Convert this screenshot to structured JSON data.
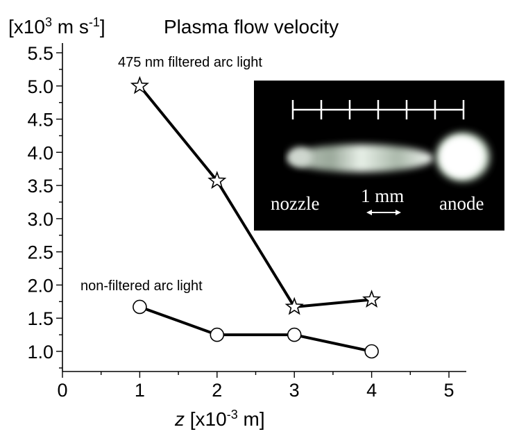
{
  "chart_data": {
    "type": "line",
    "title": "Plasma flow velocity",
    "ylabel_unit": "[x10³ m s⁻¹]",
    "xlabel": "z [x10⁻³ m]",
    "xlim": [
      0,
      5
    ],
    "ylim": [
      0.75,
      5.5
    ],
    "x_ticks": [
      "0",
      "1",
      "2",
      "3",
      "4",
      "5"
    ],
    "y_ticks": [
      "1.0",
      "1.5",
      "2.0",
      "2.5",
      "3.0",
      "3.5",
      "4.0",
      "4.5",
      "5.0",
      "5.5"
    ],
    "series": [
      {
        "name": "475 nm filtered arc light",
        "marker": "star",
        "x": [
          1,
          2,
          3,
          4
        ],
        "y": [
          5.0,
          3.57,
          1.67,
          1.78
        ]
      },
      {
        "name": "non-filtered arc light",
        "marker": "circle",
        "x": [
          1,
          2,
          3,
          4
        ],
        "y": [
          1.67,
          1.25,
          1.25,
          1.0
        ]
      }
    ]
  },
  "inset": {
    "label_left": "nozzle",
    "label_right": "anode",
    "scale_label": "1 mm",
    "scale_ticks": 7
  }
}
